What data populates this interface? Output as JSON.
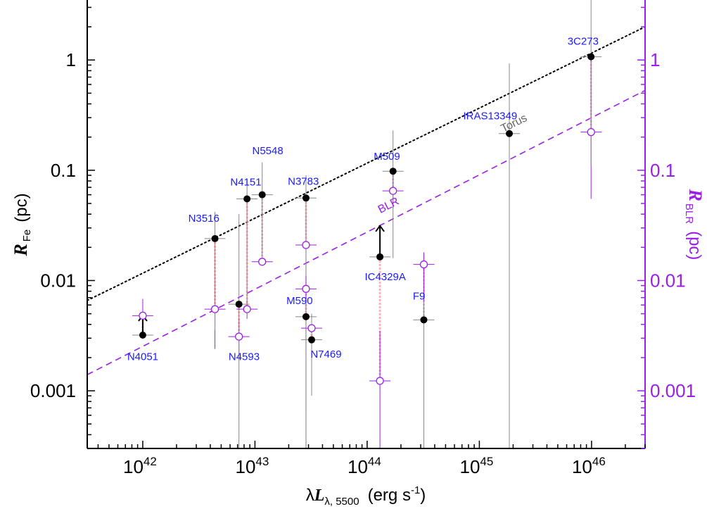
{
  "chart_data": {
    "type": "scatter",
    "xscale": "log",
    "yscale": "log",
    "xlim": [
      3.2e+41,
      3e+46
    ],
    "ylim": [
      0.0003,
      3.5
    ],
    "xticks": [
      1e+42,
      1e+43,
      1e+44,
      1e+45,
      1e+46
    ],
    "xtick_labels": [
      {
        "base": "10",
        "exp": "42"
      },
      {
        "base": "10",
        "exp": "43"
      },
      {
        "base": "10",
        "exp": "44"
      },
      {
        "base": "10",
        "exp": "45"
      },
      {
        "base": "10",
        "exp": "46"
      }
    ],
    "yticks": [
      0.001,
      0.01,
      0.1,
      1
    ],
    "ytick_labels": [
      "0.001",
      "0.01",
      "0.1",
      "1"
    ],
    "xlabel": {
      "prefix": "λ",
      "main": "L",
      "sub": "λ, 5500",
      "unit": "(erg  s",
      "unit_exp": "-1",
      "unit_close": ")"
    },
    "ylabel_left": {
      "main": "R",
      "sub": "Fe",
      "unit": "(pc)"
    },
    "ylabel_right": {
      "main": "R",
      "sub": "BLR",
      "unit": "(pc)"
    },
    "colors": {
      "fe": "#000000",
      "blr": "#9b1fe8",
      "fe_line": "#888888",
      "connector": "#ffb0b8",
      "label": "#1a1aff",
      "torus_label": "#666666"
    },
    "lines": [
      {
        "name": "Torus",
        "style": "dotted",
        "color": "#000000",
        "x": [
          3.2e+41,
          3e+46
        ],
        "y": [
          0.0066,
          2.0
        ],
        "label": "Torus",
        "label_x": 2.1e+45,
        "label_y": 0.25
      },
      {
        "name": "BLR",
        "style": "dashed",
        "color": "#9b1fe8",
        "x": [
          3.2e+41,
          3e+46
        ],
        "y": [
          0.0014,
          0.53
        ],
        "label": "BLR",
        "label_x": 1.6e+44,
        "label_y": 0.045
      }
    ],
    "objects": [
      {
        "name": "N4051",
        "x": 1e+42,
        "fe": 0.0032,
        "fe_err": [
          0.0032,
          0.0032
        ],
        "fe_lower_limit": true,
        "blr": 0.0048,
        "blr_err": [
          0.0034,
          0.0068
        ],
        "label_x": 1e+42,
        "label_y": 0.0019
      },
      {
        "name": "N3516",
        "x": 4.4e+42,
        "fe": 0.024,
        "fe_err": [
          0.0035,
          0.042
        ],
        "blr": 0.0055,
        "blr_err": [
          0.0024,
          0.011
        ],
        "label_x": 3.5e+42,
        "label_y": 0.034
      },
      {
        "name": "N4593",
        "x": 7.2e+42,
        "fe": 0.0061,
        "fe_err": [
          0.0003,
          0.04
        ],
        "blr": 0.0031,
        "blr_err": [
          0.0019,
          0.0045
        ],
        "label_x": 8e+42,
        "label_y": 0.0019
      },
      {
        "name": "N4151",
        "x": 8.5e+42,
        "fe": 0.055,
        "fe_err": [
          0.0045,
          0.08
        ],
        "blr": 0.0055,
        "blr_err": [
          0.0045,
          0.0066
        ],
        "label_x": 8.3e+42,
        "label_y": 0.073
      },
      {
        "name": "N5548",
        "x": 1.16e+43,
        "fe": 0.06,
        "fe_err": [
          0.016,
          0.118
        ],
        "blr": 0.0148,
        "blr_err": [
          0.0145,
          0.0152
        ],
        "label_x": 1.3e+43,
        "label_y": 0.14
      },
      {
        "name": "N3783",
        "x": 2.85e+43,
        "fe": 0.056,
        "fe_err": [
          0.0003,
          0.09
        ],
        "blr": 0.021,
        "blr_err": [
          0.0006,
          0.04
        ],
        "label_x": 2.7e+43,
        "label_y": 0.074
      },
      {
        "name": "M590",
        "x": 2.85e+43,
        "fe": 0.0047,
        "fe_err": [
          0.0003,
          0.0065
        ],
        "blr": 0.0084,
        "blr_err": [
          0.005,
          0.011
        ],
        "label_x": 2.5e+43,
        "label_y": 0.0061
      },
      {
        "name": "N7469",
        "x": 3.2e+43,
        "fe": 0.0029,
        "fe_err": [
          0.0009,
          0.005
        ],
        "blr": 0.0037,
        "blr_err": [
          0.0028,
          0.0048
        ],
        "label_x": 4.3e+43,
        "label_y": 0.002
      },
      {
        "name": "IC4329A",
        "x": 1.3e+44,
        "fe": 0.0164,
        "fe_err": [
          0.0164,
          0.0164
        ],
        "fe_lower_limit": true,
        "blr": 0.00123,
        "blr_err": [
          0.0003,
          0.0035
        ],
        "label_x": 1.45e+44,
        "label_y": 0.0101
      },
      {
        "name": "M509",
        "x": 1.7e+44,
        "fe": 0.098,
        "fe_err": [
          0.016,
          0.23
        ],
        "blr": 0.065,
        "blr_err": [
          0.045,
          0.09
        ],
        "label_x": 1.5e+44,
        "label_y": 0.124
      },
      {
        "name": "F9",
        "x": 3.2e+44,
        "fe": 0.0044,
        "fe_err": [
          0.0003,
          0.0065
        ],
        "blr": 0.014,
        "blr_err": [
          0.0065,
          0.018
        ],
        "label_x": 2.9e+44,
        "label_y": 0.0067
      },
      {
        "name": "IRAS13349",
        "x": 1.85e+45,
        "fe": 0.215,
        "fe_err": [
          0.0003,
          0.93
        ],
        "blr": null,
        "blr_err": null,
        "label_x": 1.25e+45,
        "label_y": 0.29
      },
      {
        "name": "3C273",
        "x": 9.9e+45,
        "fe": 1.07,
        "fe_err": [
          0.11,
          3.5
        ],
        "blr": 0.222,
        "blr_err": [
          0.055,
          1.12
        ],
        "label_x": 8.4e+45,
        "label_y": 1.38
      }
    ]
  }
}
